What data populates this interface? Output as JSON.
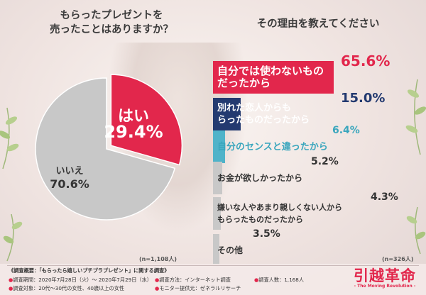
{
  "left_title": [
    "もらったプレゼントを",
    "売ったことはありますか？"
  ],
  "right_title": "その理由を教えてください",
  "chart_data": [
    {
      "type": "pie",
      "title": "もらったプレゼントを売ったことはありますか？",
      "categories": [
        "はい",
        "いいえ"
      ],
      "values": [
        29.4,
        70.6
      ],
      "value_labels": [
        "29.4%",
        "70.6%"
      ],
      "colors": [
        "#e2274c",
        "#c8c8c8"
      ],
      "n_label": "(n=1,108人)"
    },
    {
      "type": "bar",
      "orientation": "horizontal",
      "title": "その理由を教えてください",
      "categories": [
        [
          "自分では使わないもの",
          "だったから"
        ],
        [
          "別れた恋人からも",
          "らったものだったから"
        ],
        [
          "自分のセンスと違ったから"
        ],
        [
          "お金が欲しかったから"
        ],
        [
          "嫌いな人やあまり親しくない人から",
          "もらったものだったから"
        ],
        [
          "その他"
        ]
      ],
      "values": [
        65.6,
        15.0,
        6.4,
        5.2,
        4.3,
        3.5
      ],
      "value_labels": [
        "65.6%",
        "15.0%",
        "6.4%",
        "5.2%",
        "4.3%",
        "3.5%"
      ],
      "colors": [
        "#e2274c",
        "#233a70",
        "#4fb3c9",
        "#c8c8c8",
        "#c8c8c8",
        "#c8c8c8"
      ],
      "n_label": "(n=326人)"
    }
  ],
  "footer": {
    "line1": "《調査概要：「もらったら嬉しいプチプラプレゼント」に関する調査》",
    "items": [
      {
        "dot": "●",
        "text": "調査期間：2020年7月28日（火）～ 2020年7月29日（水）"
      },
      {
        "dot": "●",
        "text": "調査方法：インターネット調査"
      },
      {
        "dot": "●",
        "text": "調査人数：1,168人"
      },
      {
        "dot": "●",
        "text": "調査対象：20代～30代の女性、40歳以上の女性"
      },
      {
        "dot": "●",
        "text": "モニター提供元：ゼネラルリサーチ"
      }
    ],
    "logo_main": "引越革命",
    "logo_sub": "- The Moving Revolution -"
  }
}
